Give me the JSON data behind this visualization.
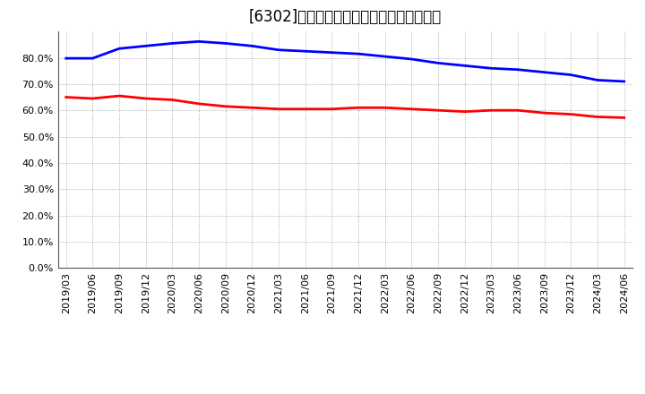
{
  "title": "[6302]　固定比率、固定長期適合率の推移",
  "series1_label": "固定比率",
  "series2_label": "固定長期適合率",
  "series1_color": "#0000ff",
  "series2_color": "#ff0000",
  "x_labels": [
    "2019/03",
    "2019/06",
    "2019/09",
    "2019/12",
    "2020/03",
    "2020/06",
    "2020/09",
    "2020/12",
    "2021/03",
    "2021/06",
    "2021/09",
    "2021/12",
    "2022/03",
    "2022/06",
    "2022/09",
    "2022/12",
    "2023/03",
    "2023/06",
    "2023/09",
    "2023/12",
    "2024/03",
    "2024/06"
  ],
  "series1_values": [
    79.8,
    79.8,
    83.5,
    84.5,
    85.5,
    86.2,
    85.5,
    84.5,
    83.0,
    82.5,
    82.0,
    81.5,
    80.5,
    79.5,
    78.0,
    77.0,
    76.0,
    75.5,
    74.5,
    73.5,
    71.5,
    71.0
  ],
  "series2_values": [
    65.0,
    64.5,
    65.5,
    64.5,
    64.0,
    62.5,
    61.5,
    61.0,
    60.5,
    60.5,
    60.5,
    61.0,
    61.0,
    60.5,
    60.0,
    59.5,
    60.0,
    60.0,
    59.0,
    58.5,
    57.5,
    57.2
  ],
  "ylim": [
    0,
    90
  ],
  "yticks": [
    0,
    10,
    20,
    30,
    40,
    50,
    60,
    70,
    80
  ],
  "background_color": "#ffffff",
  "grid_color": "#999999",
  "title_fontsize": 12,
  "legend_fontsize": 10,
  "tick_fontsize": 8,
  "line_width": 2.0
}
